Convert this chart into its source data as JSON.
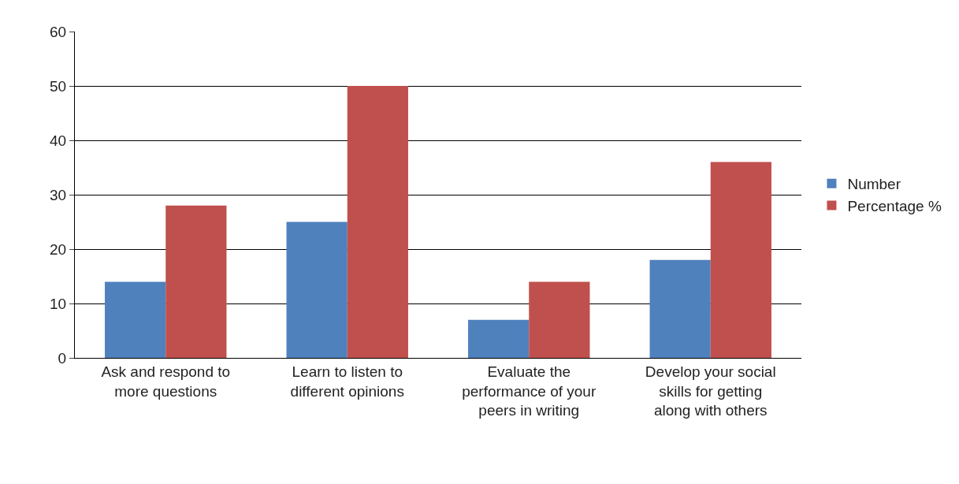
{
  "chart_data": {
    "type": "bar",
    "categories": [
      "Ask and respond to more questions",
      "Learn to listen to different opinions",
      "Evaluate the performance of your peers in writing",
      "Develop your social skills for getting along with others"
    ],
    "series": [
      {
        "name": "Number",
        "color": "#4f81bd",
        "values": [
          14,
          25,
          7,
          18
        ]
      },
      {
        "name": "Percentage %",
        "color": "#c0504d",
        "values": [
          28,
          50,
          14,
          36
        ]
      }
    ],
    "ylim": [
      0,
      60
    ],
    "yticks": [
      0,
      10,
      20,
      30,
      40,
      50,
      60
    ],
    "grid": "y",
    "legend": "right"
  }
}
